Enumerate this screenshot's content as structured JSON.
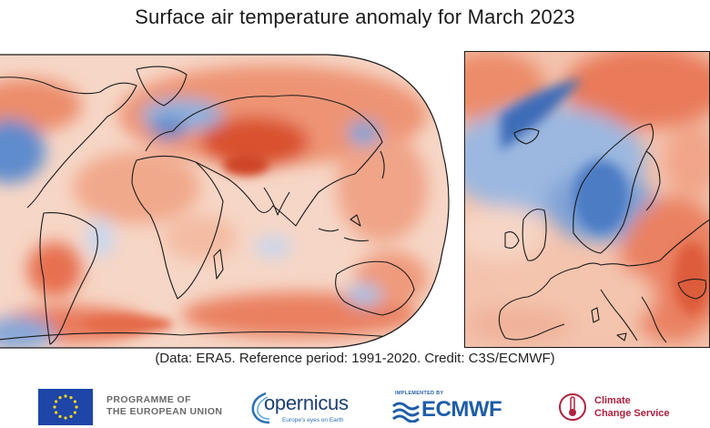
{
  "title": "Surface air temperature anomaly for March 2023",
  "caption": "(Data: ERA5.  Reference period: 1991-2020.  Credit: C3S/ECMWF)",
  "maps": {
    "world": {
      "projection": "Robinson",
      "extent": "global"
    },
    "europe": {
      "extent": "Europe"
    }
  },
  "colors": {
    "warm_anomaly": "#e8653f",
    "strong_warm": "#c93d1e",
    "mild_warm": "#f6c3a8",
    "cold_anomaly": "#6a94cf",
    "strong_cold": "#2d5aa8",
    "neutral": "#f4efec",
    "coastline": "#1a1a1a"
  },
  "logos": {
    "eu": {
      "line1": "PROGRAMME OF",
      "line2": "THE EUROPEAN UNION",
      "icon": "eu-flag-icon"
    },
    "copernicus": {
      "name": "opernicus",
      "tagline": "Europe's eyes on Earth",
      "icon": "copernicus-swirl-icon"
    },
    "ecmwf": {
      "implemented_by": "IMPLEMENTED BY",
      "name": "ECMWF",
      "icon": "ecmwf-icon"
    },
    "c3s": {
      "line1": "Climate",
      "line2": "Change Service",
      "icon": "thermometer-icon"
    }
  }
}
